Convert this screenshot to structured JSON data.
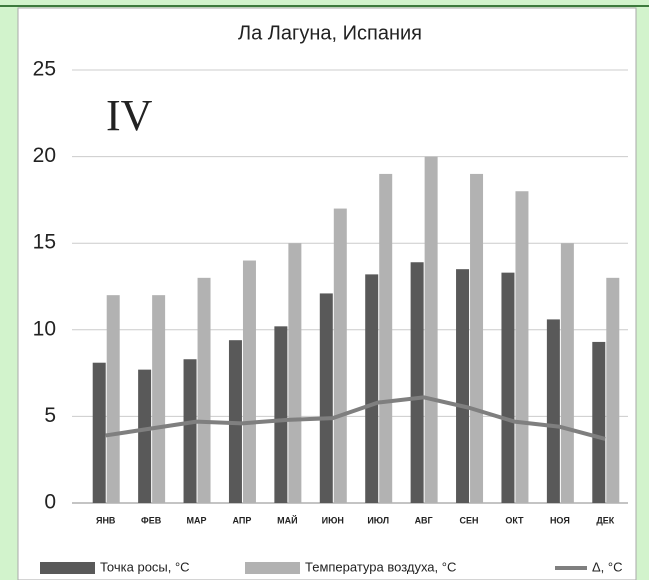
{
  "chart_data": {
    "type": "bar",
    "title": "Ла Лагуна, Испания",
    "annotation": "IV",
    "categories": [
      "ЯНВ",
      "ФЕВ",
      "МАР",
      "АПР",
      "МАЙ",
      "ИЮН",
      "ИЮЛ",
      "АВГ",
      "СЕН",
      "ОКТ",
      "НОЯ",
      "ДЕК"
    ],
    "series": [
      {
        "name": "Точка росы, °С",
        "type": "bar",
        "color": "#595959",
        "values": [
          8.1,
          7.7,
          8.3,
          9.4,
          10.2,
          12.1,
          13.2,
          13.9,
          13.5,
          13.3,
          10.6,
          9.3
        ]
      },
      {
        "name": "Температура воздуха, °С",
        "type": "bar",
        "color": "#b2b2b2",
        "values": [
          12,
          12,
          13,
          14,
          15,
          17,
          19,
          20,
          19,
          18,
          15,
          13
        ]
      },
      {
        "name": "Δ, °С",
        "type": "line",
        "color": "#7f7f7f",
        "values": [
          3.9,
          4.3,
          4.7,
          4.6,
          4.8,
          4.9,
          5.8,
          6.1,
          5.5,
          4.7,
          4.4,
          3.7
        ]
      }
    ],
    "ylim": [
      0,
      25
    ],
    "yticks": [
      0,
      5,
      10,
      15,
      20,
      25
    ],
    "grid": true,
    "legend": "bottom"
  }
}
